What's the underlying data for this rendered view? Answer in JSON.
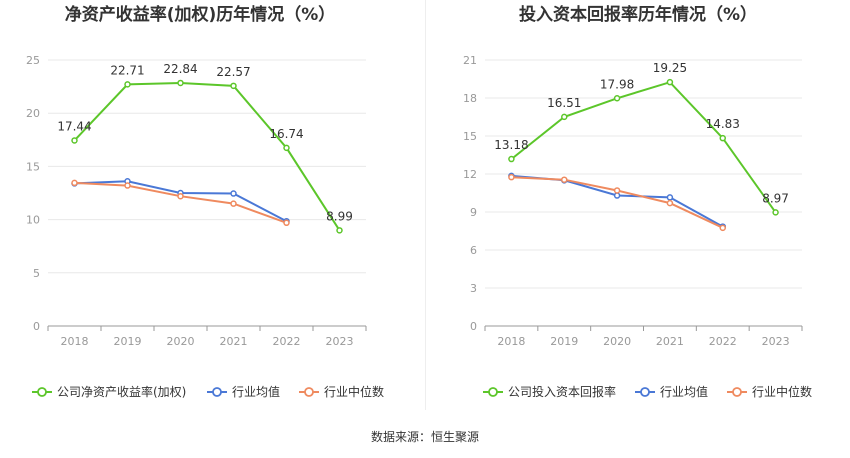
{
  "source_label": "数据来源：恒生聚源",
  "colors": {
    "company": "#5cc62a",
    "avg": "#4a78d6",
    "median": "#ef8a5f",
    "grid": "#e8e8e8",
    "axis": "#999999"
  },
  "chart_data": [
    {
      "type": "line",
      "title": "净资产收益率(加权)历年情况（%）",
      "categories": [
        "2018",
        "2019",
        "2020",
        "2021",
        "2022",
        "2023"
      ],
      "ylim": [
        0,
        25
      ],
      "yticks": [
        0,
        5,
        10,
        15,
        20,
        25
      ],
      "grid": true,
      "legend_position": "bottom",
      "series": [
        {
          "name": "公司净资产收益率(加权)",
          "color": "#5cc62a",
          "values": [
            17.44,
            22.71,
            22.84,
            22.57,
            16.74,
            8.99
          ],
          "labels": [
            "17.44",
            "22.71",
            "22.84",
            "22.57",
            "16.74",
            "8.99"
          ]
        },
        {
          "name": "行业均值",
          "color": "#4a78d6",
          "values": [
            13.4,
            13.6,
            12.5,
            12.45,
            9.85,
            null
          ]
        },
        {
          "name": "行业中位数",
          "color": "#ef8a5f",
          "values": [
            13.45,
            13.2,
            12.2,
            11.5,
            9.7,
            null
          ]
        }
      ]
    },
    {
      "type": "line",
      "title": "投入资本回报率历年情况（%）",
      "categories": [
        "2018",
        "2019",
        "2020",
        "2021",
        "2022",
        "2023"
      ],
      "ylim": [
        0,
        21
      ],
      "yticks": [
        0,
        3,
        6,
        9,
        12,
        15,
        18,
        21
      ],
      "grid": true,
      "legend_position": "bottom",
      "series": [
        {
          "name": "公司投入资本回报率",
          "color": "#5cc62a",
          "values": [
            13.18,
            16.51,
            17.98,
            19.25,
            14.83,
            8.97
          ],
          "labels": [
            "13.18",
            "16.51",
            "17.98",
            "19.25",
            "14.83",
            "8.97"
          ]
        },
        {
          "name": "行业均值",
          "color": "#4a78d6",
          "values": [
            11.85,
            11.5,
            10.3,
            10.15,
            7.85,
            null
          ]
        },
        {
          "name": "行业中位数",
          "color": "#ef8a5f",
          "values": [
            11.75,
            11.55,
            10.7,
            9.7,
            7.75,
            null
          ]
        }
      ]
    }
  ]
}
